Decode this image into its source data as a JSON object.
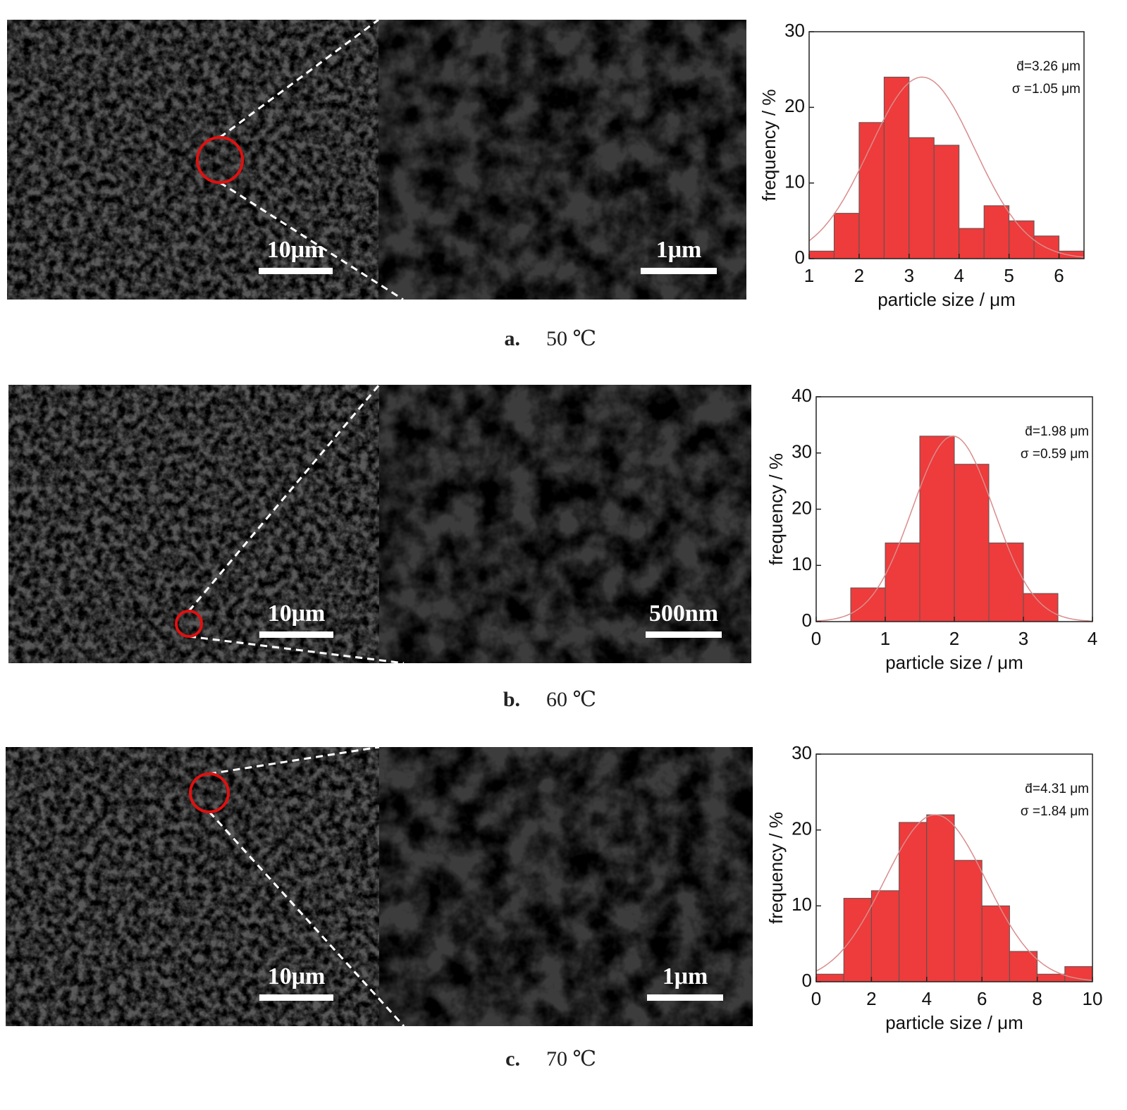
{
  "chart_data": [
    {
      "type": "histogram",
      "bins": [
        1,
        1.5,
        2,
        2.5,
        3,
        3.5,
        4,
        4.5,
        5,
        5.5,
        6,
        6.5
      ],
      "counts": [
        1,
        6,
        18,
        24,
        16,
        15,
        4,
        7,
        5,
        3,
        1
      ],
      "color": "#ee3b3b",
      "xlim": [
        1,
        6.5
      ],
      "xticks": [
        1,
        2,
        3,
        4,
        5,
        6
      ],
      "ylim": [
        0,
        30
      ],
      "yticks": [
        0,
        10,
        20,
        30
      ],
      "x_label": "particle size / μm",
      "y_label": "frequency / %",
      "fit": {
        "mean": 3.26,
        "sd": 1.05,
        "peak": 24,
        "color": "#d98c8c"
      },
      "fit_labels": [
        "d̄=3.26 μm",
        "σ =1.05 μm"
      ]
    },
    {
      "type": "histogram",
      "bins": [
        0.5,
        1,
        1.5,
        2,
        2.5,
        3,
        3.5
      ],
      "counts": [
        6,
        14,
        33,
        28,
        14,
        5
      ],
      "color": "#ee3b3b",
      "xlim": [
        0,
        4
      ],
      "xticks": [
        0,
        1,
        2,
        3,
        4
      ],
      "ylim": [
        0,
        40
      ],
      "yticks": [
        0,
        10,
        20,
        30,
        40
      ],
      "x_label": "particle size / μm",
      "y_label": "frequency / %",
      "fit": {
        "mean": 1.98,
        "sd": 0.59,
        "peak": 33,
        "color": "#d98c8c"
      },
      "fit_labels": [
        "d̄=1.98 μm",
        "σ =0.59 μm"
      ]
    },
    {
      "type": "histogram",
      "bins": [
        0,
        1,
        2,
        3,
        4,
        5,
        6,
        7,
        8,
        9,
        10
      ],
      "counts": [
        1,
        11,
        12,
        21,
        22,
        16,
        10,
        4,
        1,
        2
      ],
      "color": "#ee3b3b",
      "xlim": [
        0,
        10
      ],
      "xticks": [
        0,
        2,
        4,
        6,
        8,
        10
      ],
      "ylim": [
        0,
        30
      ],
      "yticks": [
        0,
        10,
        20,
        30
      ],
      "x_label": "particle size / μm",
      "y_label": "frequency / %",
      "fit": {
        "mean": 4.31,
        "sd": 1.84,
        "peak": 22,
        "color": "#d98c8c"
      },
      "fit_labels": [
        "d̄=4.31 μm",
        "σ =1.84 μm"
      ]
    }
  ],
  "panels": [
    {
      "label": "a.",
      "temperature": "50 ℃",
      "scale_bars": [
        "10μm",
        "1μm"
      ]
    },
    {
      "label": "b.",
      "temperature": "60 ℃",
      "scale_bars": [
        "10μm",
        "500nm"
      ]
    },
    {
      "label": "c.",
      "temperature": "70 ℃",
      "scale_bars": [
        "10μm",
        "1μm"
      ]
    }
  ]
}
